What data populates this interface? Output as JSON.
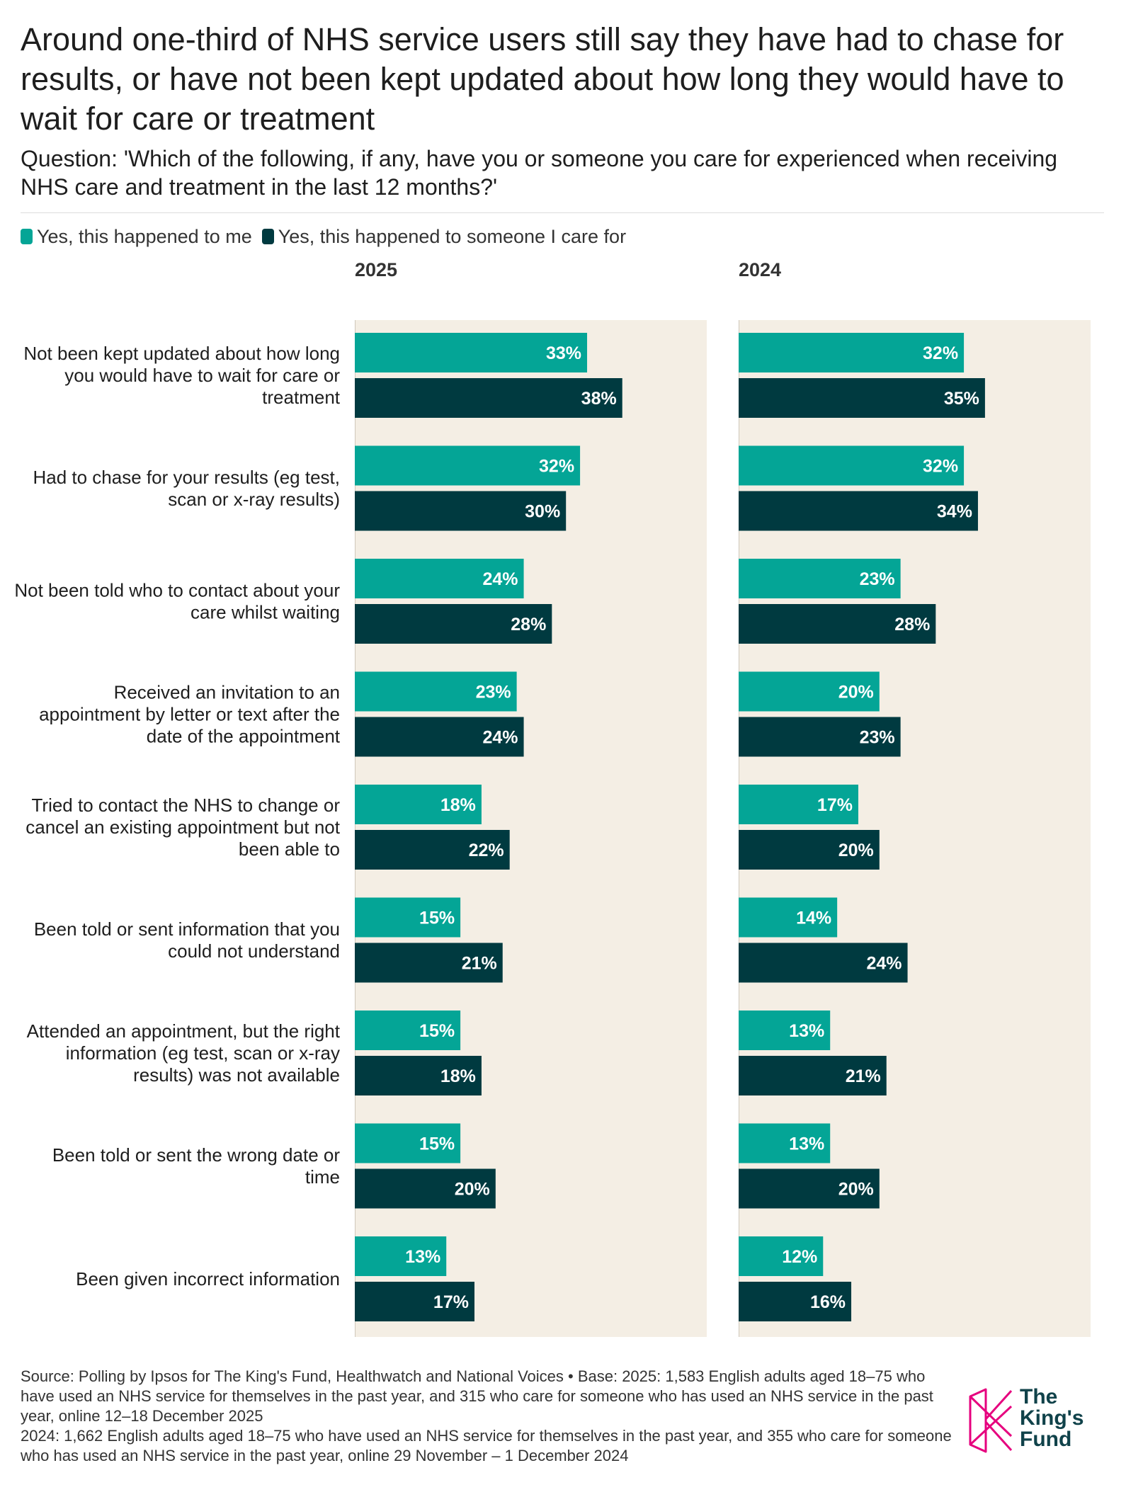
{
  "title": "Around one-third of NHS service users still say they have had to chase for results, or have not been kept updated about how long they would have to wait for care or treatment",
  "subtitle": "Question: 'Which of the following, if any, have you or someone you care for experienced when receiving NHS care and treatment in the last 12 months?'",
  "colors": {
    "me": "#04a596",
    "care": "#003a40",
    "panel_bg": "#f4eee4"
  },
  "chart_data": {
    "type": "bar",
    "orientation": "horizontal",
    "legend_position": "top-left",
    "xlim": [
      0,
      50
    ],
    "categories": [
      "Not been kept updated about how long you would have to wait for care or treatment",
      "Had to chase for your results (eg test, scan or x-ray results)",
      "Not been told who to contact about your care whilst waiting",
      "Received an invitation to an appointment by letter or text after the date of the appointment",
      "Tried to contact the NHS to change or cancel an existing appointment but not been able to",
      "Been told or sent information that you could not understand",
      "Attended an appointment, but the right information (eg test, scan or x-ray results) was not available",
      "Been told or sent the wrong date or time",
      "Been given incorrect information"
    ],
    "series_names": [
      "Yes, this happened to me",
      "Yes, this happened to someone I care for"
    ],
    "panels": [
      {
        "title": "2025",
        "series": [
          {
            "name": "Yes, this happened to me",
            "values": [
              33,
              32,
              24,
              23,
              18,
              15,
              15,
              15,
              13
            ]
          },
          {
            "name": "Yes, this happened to someone I care for",
            "values": [
              38,
              30,
              28,
              24,
              22,
              21,
              18,
              20,
              17
            ]
          }
        ]
      },
      {
        "title": "2024",
        "series": [
          {
            "name": "Yes, this happened to me",
            "values": [
              32,
              32,
              23,
              20,
              17,
              14,
              13,
              13,
              12
            ]
          },
          {
            "name": "Yes, this happened to someone I care for",
            "values": [
              35,
              34,
              28,
              23,
              20,
              24,
              21,
              20,
              16
            ]
          }
        ]
      }
    ]
  },
  "source_lines": [
    "Source: Polling by Ipsos for The King's Fund, Healthwatch and National Voices • Base: 2025: 1,583 English adults aged 18–75 who have used an NHS service for themselves in the past year, and 315 who care for someone who has used an NHS service in the past year, online 12–18 December 2025",
    "2024: 1,662 English adults aged 18–75 who have used an NHS service for themselves in the past year, and 355 who care for someone who has used an NHS service in the past year, online 29 November – 1 December 2024"
  ],
  "logo": {
    "icon": "kings-fund-k-logo",
    "line1": "The",
    "line2": "King's",
    "line3": "Fund"
  }
}
